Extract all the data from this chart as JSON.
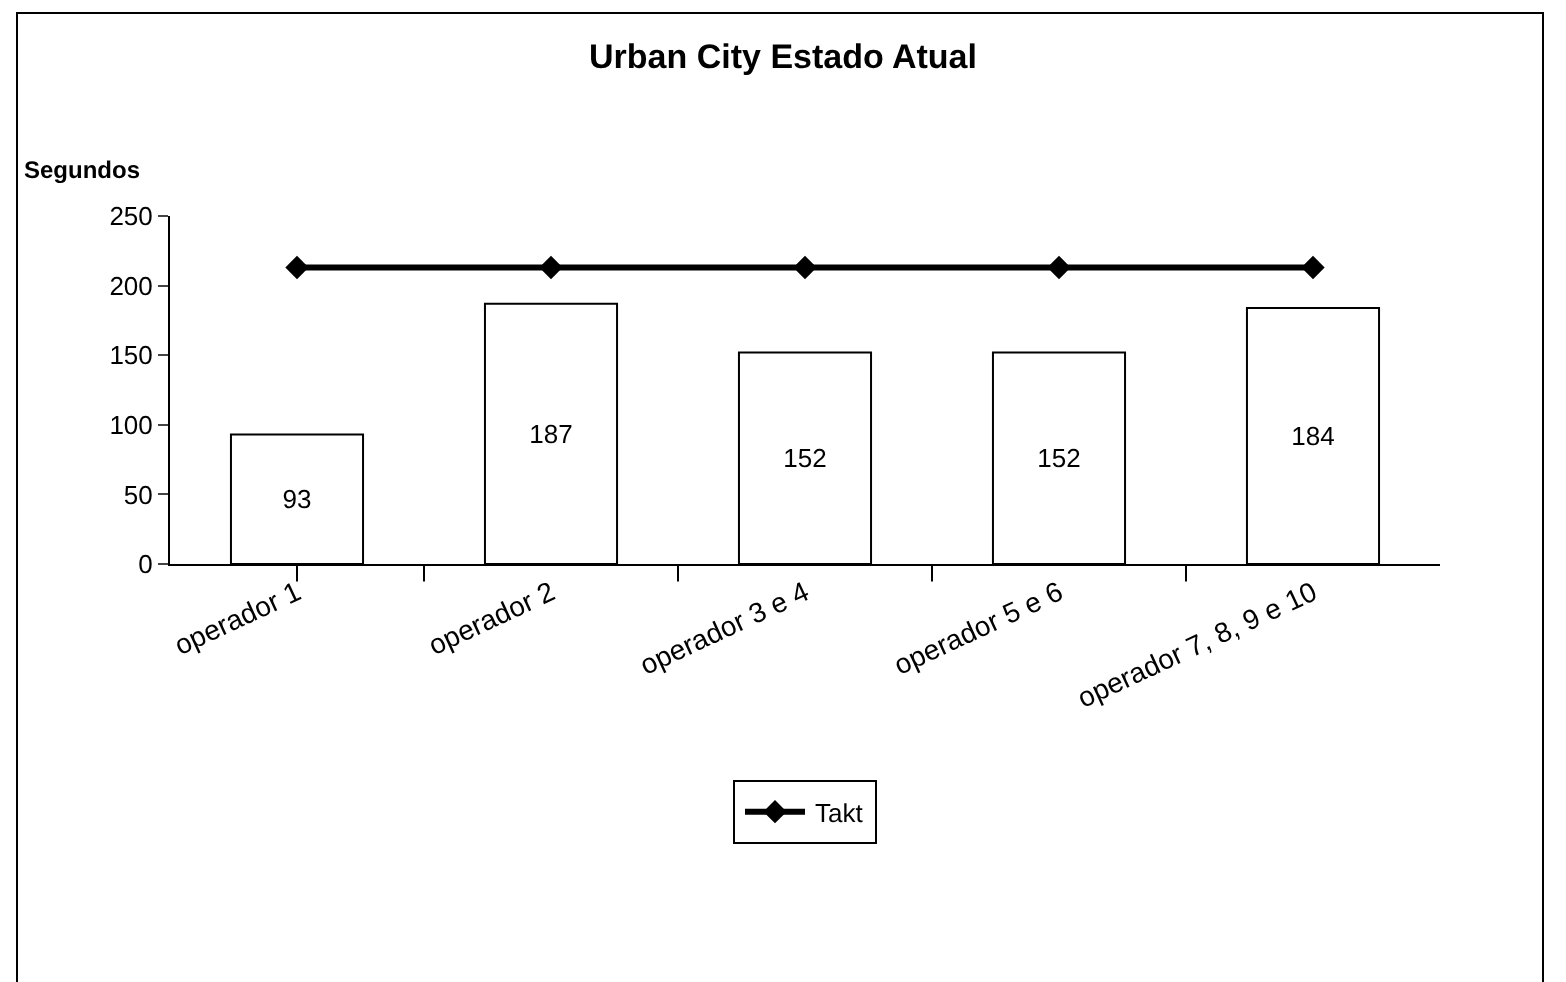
{
  "chart_data": {
    "type": "bar",
    "title": "Urban City Estado Atual",
    "ylabel": "Segundos",
    "categories": [
      "operador 1",
      "operador 2",
      "operador 3 e 4",
      "operador 5 e 6",
      "operador 7, 8, 9 e 10"
    ],
    "series": [
      {
        "color": "#ffffff",
        "values": [
          93,
          187,
          152,
          152,
          184
        ],
        "value_labels": [
          "93",
          "187",
          "152",
          "152",
          "184"
        ]
      },
      {
        "type": "line",
        "name": "Takt",
        "color": "#000000",
        "values": [
          213,
          213,
          213,
          213,
          213
        ],
        "marker": "diamond",
        "line_style": "solid"
      }
    ],
    "ylim": [
      0,
      250
    ],
    "yticks": [
      0,
      50,
      100,
      150,
      200,
      250
    ],
    "grid": false,
    "legend": "bottom"
  }
}
